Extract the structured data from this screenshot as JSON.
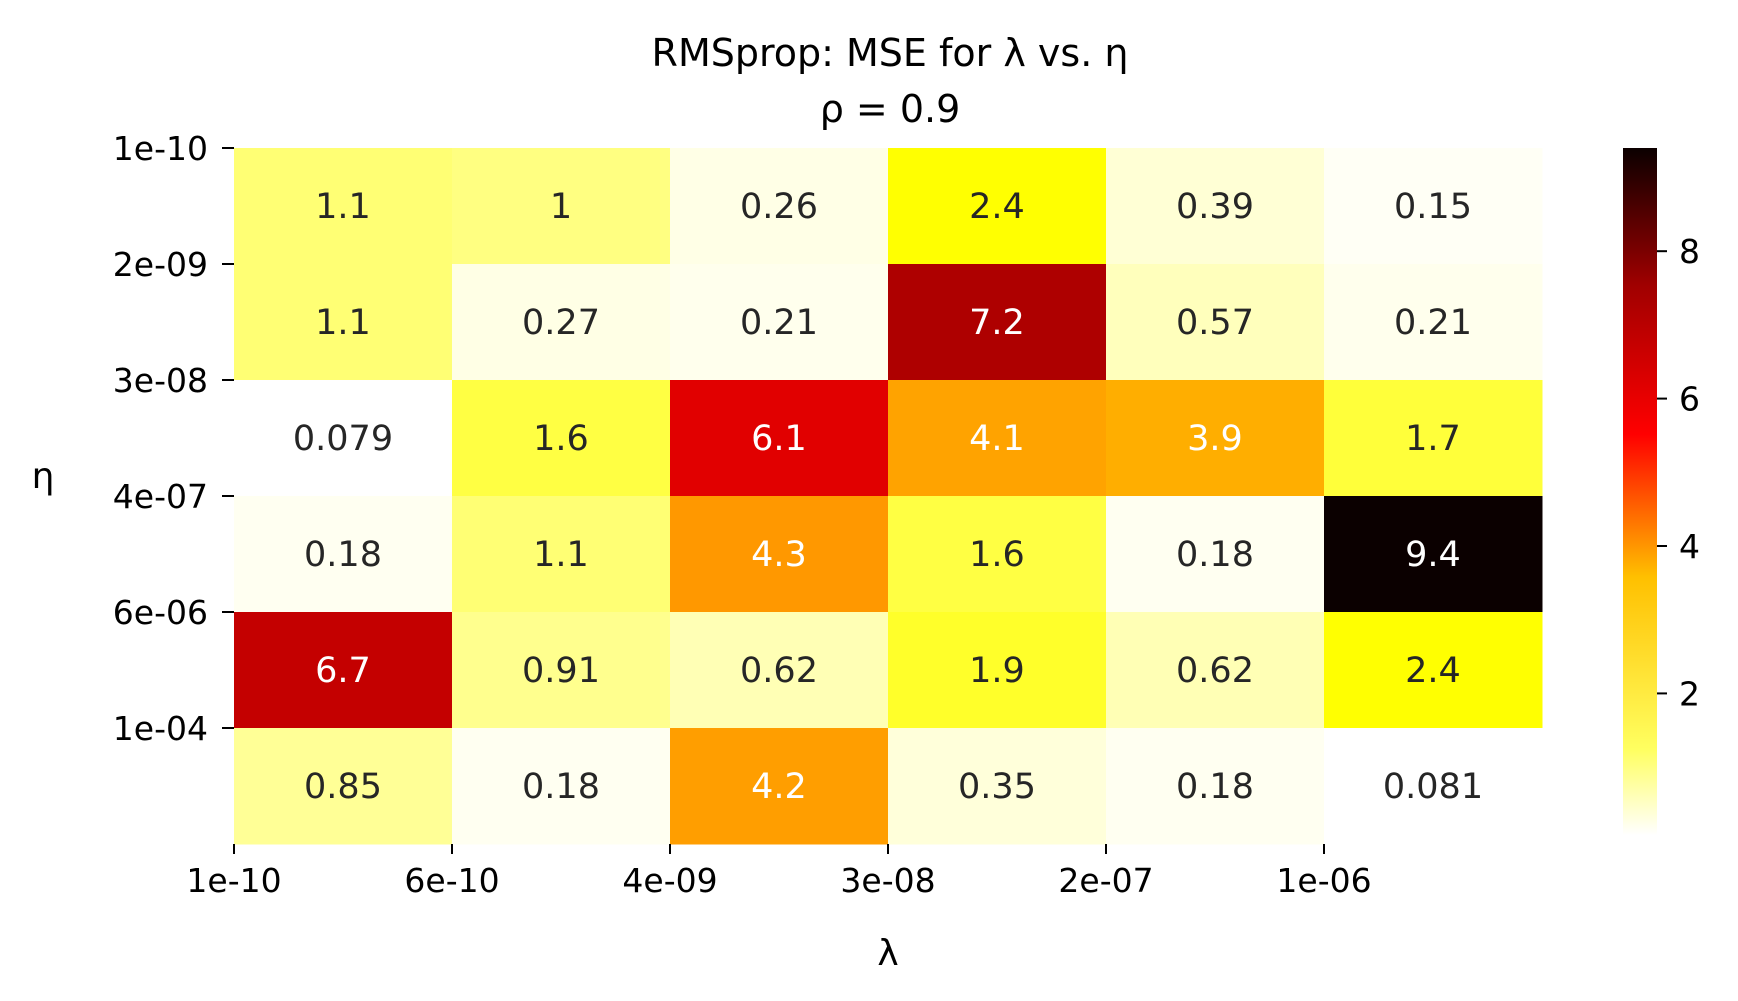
{
  "chart_data": {
    "type": "heatmap",
    "title": "RMSprop: MSE for λ vs. η",
    "subtitle": "ρ = 0.9",
    "xlabel": "λ",
    "ylabel": "η",
    "x_ticks": [
      "1e-10",
      "6e-10",
      "4e-09",
      "3e-08",
      "2e-07",
      "1e-06"
    ],
    "y_ticks": [
      "1e-10",
      "2e-09",
      "3e-08",
      "4e-07",
      "6e-06",
      "1e-04"
    ],
    "values": [
      [
        1.1,
        1,
        0.26,
        2.4,
        0.39,
        0.15
      ],
      [
        1.1,
        0.27,
        0.21,
        7.2,
        0.57,
        0.21
      ],
      [
        0.079,
        1.6,
        6.1,
        4.1,
        3.9,
        1.7
      ],
      [
        0.18,
        1.1,
        4.3,
        1.6,
        0.18,
        9.4
      ],
      [
        6.7,
        0.91,
        0.62,
        1.9,
        0.62,
        2.4
      ],
      [
        0.85,
        0.18,
        4.2,
        0.35,
        0.18,
        0.081
      ]
    ],
    "value_labels": [
      [
        "1.1",
        "1",
        "0.26",
        "2.4",
        "0.39",
        "0.15"
      ],
      [
        "1.1",
        "0.27",
        "0.21",
        "7.2",
        "0.57",
        "0.21"
      ],
      [
        "0.079",
        "1.6",
        "6.1",
        "4.1",
        "3.9",
        "1.7"
      ],
      [
        "0.18",
        "1.1",
        "4.3",
        "1.6",
        "0.18",
        "9.4"
      ],
      [
        "6.7",
        "0.91",
        "0.62",
        "1.9",
        "0.62",
        "2.4"
      ],
      [
        "0.85",
        "0.18",
        "4.2",
        "0.35",
        "0.18",
        "0.081"
      ]
    ],
    "colormap": "hot_r",
    "colorbar": {
      "ticks": [
        "2",
        "4",
        "6",
        "8"
      ],
      "tick_values": [
        2,
        4,
        6,
        8
      ],
      "range": [
        0.079,
        9.4
      ]
    },
    "grid": false
  }
}
